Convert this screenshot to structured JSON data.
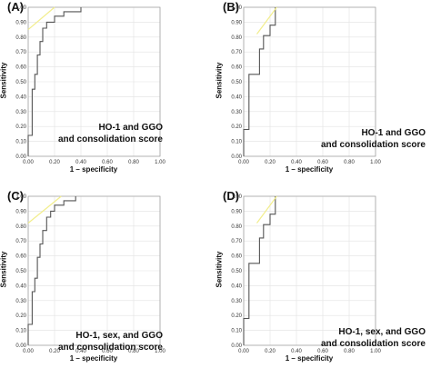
{
  "chart_data": [
    {
      "type": "line",
      "panel_label": "(A)",
      "annotation_lines": [
        "HO-1 and GGO",
        "and consolidation score"
      ],
      "xlabel": "1 – specificity",
      "ylabel": "Sensitivity",
      "xlim": [
        0,
        1
      ],
      "ylim": [
        0,
        1
      ],
      "xticks": [
        "0.00",
        "0.20",
        "0.40",
        "0.60",
        "0.80",
        "1.00"
      ],
      "yticks": [
        "0.00",
        "0.10",
        "0.20",
        "0.30",
        "0.40",
        "0.50",
        "0.60",
        "0.70",
        "0.80",
        "0.90",
        "1.00"
      ],
      "grid": true,
      "series": [
        {
          "color": "#555555",
          "x": [
            0,
            0,
            0.03,
            0.03,
            0.05,
            0.05,
            0.07,
            0.07,
            0.09,
            0.09,
            0.11,
            0.11,
            0.14,
            0.14,
            0.2,
            0.2,
            0.27,
            0.27,
            0.4,
            0.4
          ],
          "y": [
            0,
            0.14,
            0.14,
            0.45,
            0.45,
            0.55,
            0.55,
            0.68,
            0.68,
            0.77,
            0.77,
            0.86,
            0.86,
            0.9,
            0.9,
            0.94,
            0.94,
            0.97,
            0.97,
            1.0
          ]
        },
        {
          "color": "#f2ee8c",
          "x": [
            0,
            0.2
          ],
          "y": [
            0.85,
            1.0
          ]
        }
      ]
    },
    {
      "type": "line",
      "panel_label": "(B)",
      "annotation_lines": [
        "HO-1 and GGO",
        "and consolidation score"
      ],
      "xlabel": "1 – specificity",
      "ylabel": "Sensitivity",
      "xlim": [
        0,
        1
      ],
      "ylim": [
        0,
        1
      ],
      "xticks": [
        "0.00",
        "0.20",
        "0.40",
        "0.60",
        "0.80",
        "1.00"
      ],
      "yticks": [
        "0.00",
        "0.10",
        "0.20",
        "0.30",
        "0.40",
        "0.50",
        "0.60",
        "0.70",
        "0.80",
        "0.90",
        "1.00"
      ],
      "grid": true,
      "series": [
        {
          "color": "#555555",
          "x": [
            0,
            0,
            0.04,
            0.04,
            0.12,
            0.12,
            0.15,
            0.15,
            0.2,
            0.2,
            0.24,
            0.24
          ],
          "y": [
            0,
            0.18,
            0.18,
            0.55,
            0.55,
            0.72,
            0.72,
            0.81,
            0.81,
            0.88,
            0.88,
            1.0
          ]
        },
        {
          "color": "#f2ee8c",
          "x": [
            0.1,
            0.25
          ],
          "y": [
            0.82,
            1.0
          ]
        }
      ]
    },
    {
      "type": "line",
      "panel_label": "(C)",
      "annotation_lines": [
        "HO-1, sex, and GGO",
        "and consolidation score"
      ],
      "xlabel": "1 – specificity",
      "ylabel": "Sensitivity",
      "xlim": [
        0,
        1
      ],
      "ylim": [
        0,
        1
      ],
      "xticks": [
        "0.00",
        "0.20",
        "0.40",
        "0.60",
        "0.80",
        "1.00"
      ],
      "yticks": [
        "0.00",
        "0.10",
        "0.20",
        "0.30",
        "0.40",
        "0.50",
        "0.60",
        "0.70",
        "0.80",
        "0.90",
        "1.00"
      ],
      "grid": true,
      "series": [
        {
          "color": "#555555",
          "x": [
            0,
            0,
            0.03,
            0.03,
            0.05,
            0.05,
            0.07,
            0.07,
            0.09,
            0.09,
            0.11,
            0.11,
            0.14,
            0.14,
            0.17,
            0.17,
            0.2,
            0.2,
            0.27,
            0.27,
            0.36,
            0.36
          ],
          "y": [
            0,
            0.14,
            0.14,
            0.36,
            0.36,
            0.45,
            0.45,
            0.59,
            0.59,
            0.68,
            0.68,
            0.77,
            0.77,
            0.86,
            0.86,
            0.9,
            0.9,
            0.94,
            0.94,
            0.97,
            0.97,
            1.0
          ]
        },
        {
          "color": "#f2ee8c",
          "x": [
            0,
            0.25
          ],
          "y": [
            0.82,
            1.0
          ]
        }
      ]
    },
    {
      "type": "line",
      "panel_label": "(D)",
      "annotation_lines": [
        "HO-1, sex, and GGO",
        "and consolidation score"
      ],
      "xlabel": "1 – specificity",
      "ylabel": "Sensitivity",
      "xlim": [
        0,
        1
      ],
      "ylim": [
        0,
        1
      ],
      "xticks": [
        "0.00",
        "0.20",
        "0.40",
        "0.60",
        "0.80",
        "1.00"
      ],
      "yticks": [
        "0.00",
        "0.10",
        "0.20",
        "0.30",
        "0.40",
        "0.50",
        "0.60",
        "0.70",
        "0.80",
        "0.90",
        "1.00"
      ],
      "grid": true,
      "series": [
        {
          "color": "#555555",
          "x": [
            0,
            0,
            0.04,
            0.04,
            0.12,
            0.12,
            0.15,
            0.15,
            0.2,
            0.2,
            0.24,
            0.24
          ],
          "y": [
            0,
            0.18,
            0.18,
            0.55,
            0.55,
            0.72,
            0.72,
            0.81,
            0.81,
            0.88,
            0.88,
            1.0
          ]
        },
        {
          "color": "#f2ee8c",
          "x": [
            0.1,
            0.25
          ],
          "y": [
            0.82,
            1.0
          ]
        }
      ]
    }
  ]
}
